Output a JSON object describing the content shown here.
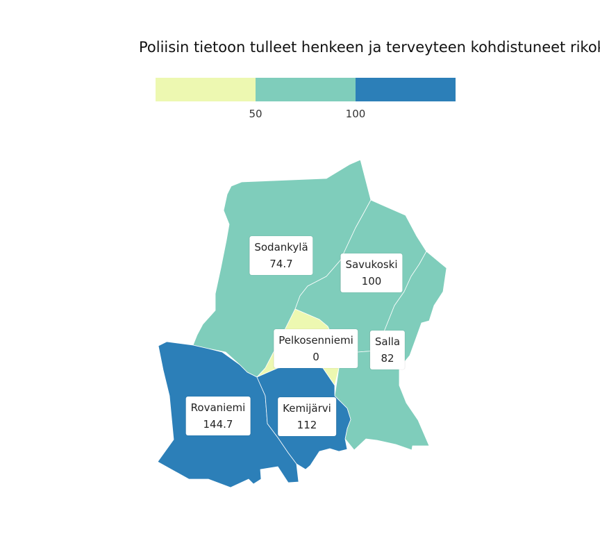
{
  "title": "Poliisin tietoon tulleet henkeen ja terveyteen kohdistuneet rikok",
  "legend": {
    "colors": [
      "#edf8b1",
      "#7fcdbb",
      "#2c7fb8"
    ],
    "breaks": [
      "50",
      "100"
    ]
  },
  "regions": [
    {
      "name": "Sodankylä",
      "value": "74.7",
      "color": "#7fcdbb"
    },
    {
      "name": "Savukoski",
      "value": "100",
      "color": "#7fcdbb"
    },
    {
      "name": "Salla",
      "value": "82",
      "color": "#7fcdbb"
    },
    {
      "name": "Pelkosenniemi",
      "value": "0",
      "color": "#edf8b1"
    },
    {
      "name": "Rovaniemi",
      "value": "144.7",
      "color": "#2c7fb8"
    },
    {
      "name": "Kemijärvi",
      "value": "112",
      "color": "#2c7fb8"
    }
  ]
}
